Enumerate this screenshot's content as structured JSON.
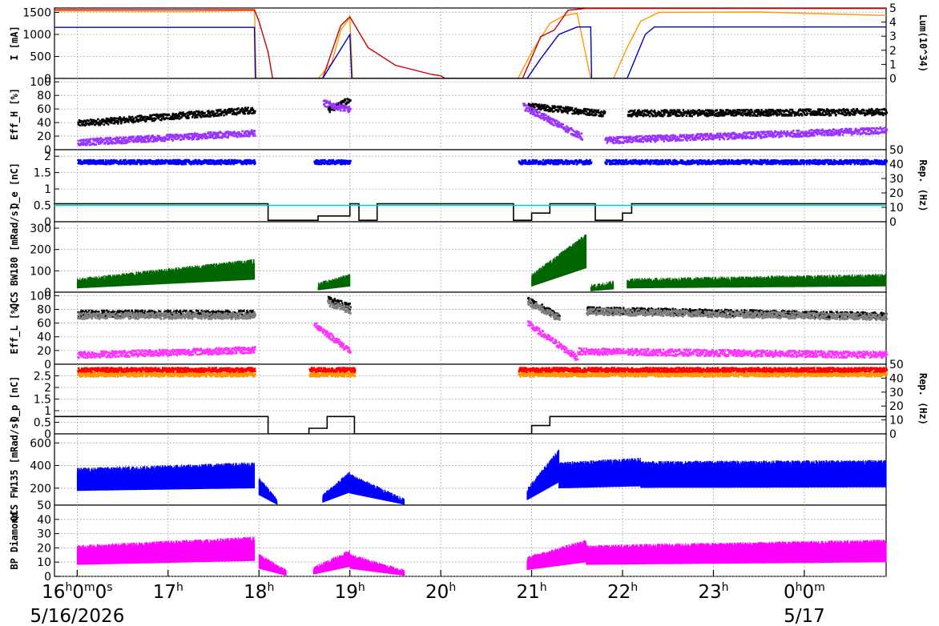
{
  "chart_data": {
    "type": "line",
    "title": "",
    "x_axis": {
      "range": [
        "5/16/2026 16:00",
        "5/17/2026 00:55"
      ],
      "tick_labels": [
        {
          "main": "16",
          "sup1": "h",
          "mid": "0",
          "sup2": "m",
          "tail": "0",
          "sup3": "s",
          "hour": 16
        },
        {
          "main": "17",
          "sup1": "h",
          "hour": 17
        },
        {
          "main": "18",
          "sup1": "h",
          "hour": 18
        },
        {
          "main": "19",
          "sup1": "h",
          "hour": 19
        },
        {
          "main": "20",
          "sup1": "h",
          "hour": 20
        },
        {
          "main": "21",
          "sup1": "h",
          "hour": 21
        },
        {
          "main": "22",
          "sup1": "h",
          "hour": 22
        },
        {
          "main": "23",
          "sup1": "h",
          "hour": 23
        },
        {
          "main": "0",
          "sup1": "h",
          "mid": "0",
          "sup2": "m",
          "hour": 24
        }
      ],
      "date_labels": [
        {
          "text": "5/16/2026",
          "hour": 16
        },
        {
          "text": "5/17",
          "hour": 24
        }
      ],
      "hours_span": [
        15.75,
        24.9
      ]
    },
    "panels": [
      {
        "id": "current",
        "ylabel": "I [mA]",
        "yticks": [
          0,
          500,
          1000,
          1500
        ],
        "ylim": [
          0,
          1600
        ],
        "ylabel_right": "Lum(10^34)",
        "yticks_right": [
          0,
          1,
          2,
          3,
          4,
          5
        ],
        "ylim_right": [
          0,
          5
        ],
        "series": [
          {
            "color": "#ff9900",
            "points": [
              [
                15.75,
                1530
              ],
              [
                17.2,
                1520
              ],
              [
                17.95,
                1540
              ],
              [
                17.97,
                0
              ],
              [
                18.65,
                0
              ],
              [
                18.8,
                350
              ],
              [
                18.9,
                1100
              ],
              [
                19.0,
                1380
              ],
              [
                19.03,
                0
              ],
              [
                20.85,
                0
              ],
              [
                21.0,
                600
              ],
              [
                21.2,
                1250
              ],
              [
                21.35,
                1420
              ],
              [
                21.5,
                1480
              ],
              [
                21.65,
                0
              ],
              [
                21.9,
                0
              ],
              [
                22.05,
                700
              ],
              [
                22.2,
                1300
              ],
              [
                22.4,
                1500
              ],
              [
                23.5,
                1510
              ],
              [
                24.9,
                1430
              ]
            ]
          },
          {
            "color": "#cc0000",
            "points": [
              [
                15.75,
                1560
              ],
              [
                17.95,
                1560
              ],
              [
                18.0,
                1300
              ],
              [
                18.1,
                600
              ],
              [
                18.15,
                0
              ],
              [
                18.7,
                0
              ],
              [
                18.9,
                1200
              ],
              [
                19.0,
                1400
              ],
              [
                19.2,
                700
              ],
              [
                19.5,
                300
              ],
              [
                19.9,
                90
              ],
              [
                20.0,
                60
              ],
              [
                20.05,
                0
              ],
              [
                20.9,
                0
              ],
              [
                21.1,
                950
              ],
              [
                21.25,
                1100
              ],
              [
                21.4,
                1550
              ],
              [
                21.6,
                1590
              ],
              [
                24.9,
                1590
              ]
            ]
          },
          {
            "color": "#0000cc",
            "points": [
              [
                15.75,
                1160
              ],
              [
                17.95,
                1160
              ],
              [
                17.96,
                0
              ],
              [
                18.7,
                0
              ],
              [
                18.85,
                500
              ],
              [
                19.0,
                1000
              ],
              [
                19.02,
                0
              ],
              [
                20.95,
                0
              ],
              [
                21.1,
                450
              ],
              [
                21.3,
                1000
              ],
              [
                21.5,
                1170
              ],
              [
                21.65,
                1170
              ],
              [
                21.66,
                0
              ],
              [
                22.05,
                0
              ],
              [
                22.25,
                1000
              ],
              [
                22.35,
                1170
              ],
              [
                24.9,
                1170
              ]
            ]
          }
        ]
      },
      {
        "id": "eff_h",
        "ylabel": "Eff_H [%]",
        "yticks": [
          0,
          20,
          40,
          60,
          80,
          100
        ],
        "ylim": [
          0,
          105
        ],
        "series": [
          {
            "color": "#000000",
            "style": "scatter",
            "segments": [
              [
                16.0,
                17.95,
                40,
                60
              ],
              [
                18.75,
                19.0,
                60,
                75
              ],
              [
                20.95,
                21.8,
                65,
                55
              ],
              [
                22.05,
                24.9,
                55,
                57
              ]
            ]
          },
          {
            "color": "#9933ff",
            "style": "scatter",
            "segments": [
              [
                16.0,
                17.95,
                12,
                26
              ],
              [
                18.7,
                19.0,
                70,
                60
              ],
              [
                20.9,
                21.55,
                65,
                20
              ],
              [
                21.8,
                24.9,
                15,
                30
              ]
            ]
          }
        ]
      },
      {
        "id": "qe",
        "ylabel": "Q_e [nC]",
        "yticks": [
          0,
          0.5,
          1,
          1.5,
          2
        ],
        "ylim": [
          0,
          2.2
        ],
        "ylabel_right": "Rep. (Hz)",
        "yticks_right": [
          0,
          10,
          20,
          30,
          40,
          50
        ],
        "ylim_right": [
          0,
          50
        ],
        "series": [
          {
            "color": "#0000ff",
            "style": "scatter",
            "value": 1.85,
            "ranges": [
              [
                16.0,
                17.95
              ],
              [
                18.6,
                19.0
              ],
              [
                20.85,
                21.65
              ],
              [
                21.8,
                24.9
              ]
            ]
          },
          {
            "color": "#000000",
            "style": "step",
            "points": [
              [
                15.75,
                12.5
              ],
              [
                18.1,
                12.5
              ],
              [
                18.1,
                1
              ],
              [
                18.65,
                1
              ],
              [
                18.65,
                4
              ],
              [
                19.0,
                4
              ],
              [
                19.0,
                12.5
              ],
              [
                19.1,
                12.5
              ],
              [
                19.1,
                1
              ],
              [
                19.3,
                1
              ],
              [
                19.3,
                12.5
              ],
              [
                20.8,
                12.5
              ],
              [
                20.8,
                1
              ],
              [
                21.0,
                1
              ],
              [
                21.0,
                6
              ],
              [
                21.2,
                6
              ],
              [
                21.2,
                12.5
              ],
              [
                21.7,
                12.5
              ],
              [
                21.7,
                1
              ],
              [
                22.0,
                1
              ],
              [
                22.0,
                6
              ],
              [
                22.1,
                6
              ],
              [
                22.1,
                12.5
              ],
              [
                24.9,
                12.5
              ]
            ]
          },
          {
            "color": "#00cccc",
            "style": "line",
            "points": [
              [
                15.75,
                0.5
              ],
              [
                24.9,
                0.5
              ]
            ]
          }
        ]
      },
      {
        "id": "qcs_bw180",
        "ylabel": "QCS BW180 [mRad/s]",
        "yticks": [
          0,
          100,
          200,
          300
        ],
        "ylim": [
          0,
          330
        ],
        "series": [
          {
            "color": "#006600",
            "style": "noise",
            "segments": [
              [
                16.0,
                17.95,
                40,
                130
              ],
              [
                18.65,
                19.0,
                20,
                60
              ],
              [
                21.0,
                21.6,
                60,
                250
              ],
              [
                21.65,
                21.9,
                10,
                30
              ],
              [
                22.05,
                24.9,
                40,
                60
              ]
            ]
          }
        ]
      },
      {
        "id": "eff_l",
        "ylabel": "Eff_L [%]",
        "yticks": [
          0,
          20,
          40,
          60,
          80,
          100
        ],
        "ylim": [
          0,
          105
        ],
        "series": [
          {
            "color": "#000000",
            "style": "scatter",
            "segments": [
              [
                16.0,
                17.95,
                75,
                75
              ],
              [
                18.75,
                19.0,
                95,
                85
              ],
              [
                20.95,
                21.3,
                95,
                70
              ],
              [
                21.6,
                24.9,
                80,
                72
              ]
            ]
          },
          {
            "color": "#808080",
            "style": "scatter",
            "segments": [
              [
                16.0,
                17.95,
                72,
                72
              ],
              [
                18.75,
                19.0,
                90,
                80
              ],
              [
                20.95,
                21.3,
                92,
                68
              ],
              [
                21.6,
                24.9,
                78,
                70
              ]
            ]
          },
          {
            "color": "#ff33ff",
            "style": "scatter",
            "segments": [
              [
                16.0,
                17.95,
                15,
                22
              ],
              [
                18.6,
                19.0,
                60,
                20
              ],
              [
                20.95,
                21.5,
                60,
                10
              ],
              [
                21.5,
                24.9,
                20,
                15
              ]
            ]
          }
        ]
      },
      {
        "id": "qp",
        "ylabel": "Q_p [nC]",
        "yticks": [
          0,
          0.5,
          1,
          1.5,
          2,
          2.5
        ],
        "ylim": [
          0,
          3
        ],
        "ylabel_right": "Rep. (Hz)",
        "yticks_right": [
          0,
          10,
          20,
          30,
          40,
          50
        ],
        "ylim_right": [
          0,
          50
        ],
        "series": [
          {
            "color": "#ff9900",
            "style": "scatter",
            "value": 2.6,
            "ranges": [
              [
                16.0,
                17.95
              ],
              [
                18.55,
                19.05
              ],
              [
                20.85,
                24.9
              ]
            ]
          },
          {
            "color": "#ff0000",
            "style": "scatter",
            "value": 2.8,
            "ranges": [
              [
                16.0,
                17.95
              ],
              [
                18.55,
                19.05
              ],
              [
                20.85,
                24.9
              ]
            ]
          },
          {
            "color": "#000000",
            "style": "step",
            "points": [
              [
                15.75,
                12.5
              ],
              [
                18.1,
                12.5
              ],
              [
                18.1,
                0
              ],
              [
                18.55,
                0
              ],
              [
                18.55,
                4
              ],
              [
                18.75,
                4
              ],
              [
                18.75,
                12.5
              ],
              [
                19.05,
                12.5
              ],
              [
                19.05,
                0
              ],
              [
                21.0,
                0
              ],
              [
                21.0,
                6
              ],
              [
                21.2,
                6
              ],
              [
                21.2,
                12.5
              ],
              [
                24.9,
                12.5
              ]
            ]
          }
        ]
      },
      {
        "id": "qcs_fw135",
        "ylabel": "QCS FW135 [mRad/s]",
        "yticks": [
          50,
          200,
          400,
          600
        ],
        "ylim": [
          50,
          680
        ],
        "series": [
          {
            "color": "#0000ff",
            "style": "noise",
            "segments": [
              [
                16.0,
                17.95,
                330,
                380
              ],
              [
                18.0,
                18.2,
                250,
                60
              ],
              [
                18.7,
                19.0,
                100,
                300
              ],
              [
                19.0,
                19.6,
                280,
                60
              ],
              [
                20.95,
                21.3,
                150,
                500
              ],
              [
                21.3,
                22.2,
                380,
                420
              ],
              [
                22.2,
                24.9,
                390,
                400
              ]
            ]
          }
        ]
      },
      {
        "id": "bp_diamond",
        "ylabel": "BP Diamond",
        "yticks": [
          0,
          10,
          20,
          30,
          40
        ],
        "ylim": [
          0,
          50
        ],
        "series": [
          {
            "color": "#ff00ff",
            "style": "noise",
            "segments": [
              [
                16.0,
                17.95,
                18,
                24
              ],
              [
                18.0,
                18.3,
                12,
                1
              ],
              [
                18.6,
                19.0,
                3,
                15
              ],
              [
                19.0,
                19.6,
                12,
                1
              ],
              [
                20.95,
                21.6,
                10,
                22
              ],
              [
                21.6,
                24.9,
                18,
                22
              ]
            ]
          }
        ]
      }
    ]
  }
}
